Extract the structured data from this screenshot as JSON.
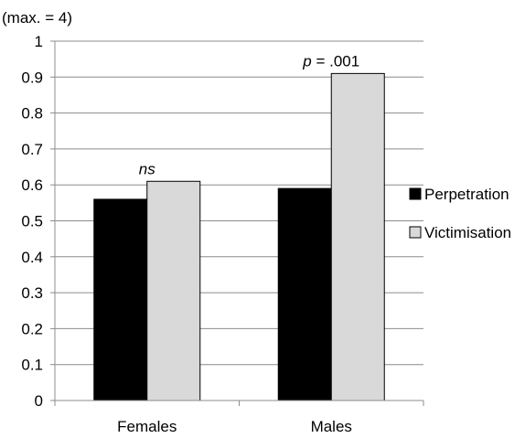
{
  "chart_data": {
    "type": "bar",
    "title": "",
    "unit_note": "(max. = 4)",
    "xlabel": "",
    "ylabel": "",
    "ylim": [
      0,
      1
    ],
    "yticks": [
      "0",
      "0.1",
      "0.2",
      "0.3",
      "0.4",
      "0.5",
      "0.6",
      "0.7",
      "0.8",
      "0.9",
      "1"
    ],
    "grid": true,
    "legend_position": "right",
    "categories": [
      "Females",
      "Males"
    ],
    "series": [
      {
        "name": "Perpetration",
        "values": [
          0.56,
          0.59
        ],
        "color": "#000000"
      },
      {
        "name": "Victimisation",
        "values": [
          0.61,
          0.91
        ],
        "color": "#d9d9d9"
      }
    ],
    "annotations": [
      {
        "category": "Females",
        "prefix": "ns",
        "suffix": ""
      },
      {
        "category": "Males",
        "prefix": "p",
        "suffix": " = .001"
      }
    ]
  }
}
